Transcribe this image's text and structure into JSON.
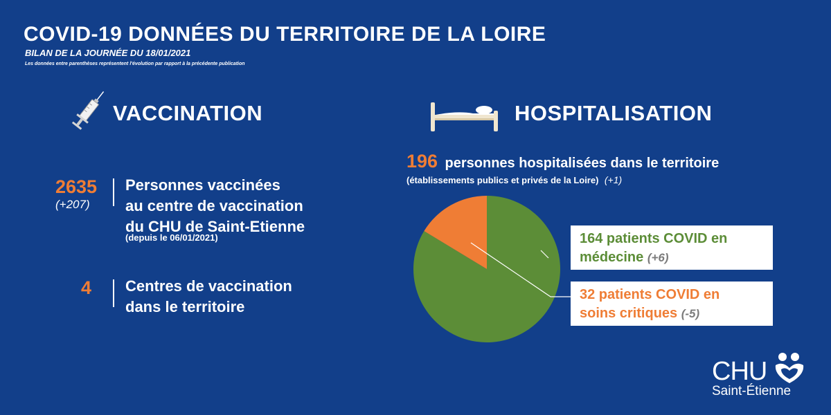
{
  "header": {
    "title": "COVID-19 DONNÉES DU TERRITOIRE DE LA LOIRE",
    "subtitle": "BILAN DE LA JOURNÉE DU 18/01/2021",
    "note": "Les données entre parenthèses représentent l'évolution par rapport à la précédente publication"
  },
  "vaccination": {
    "title": "VACCINATION",
    "icon": "syringe-icon",
    "persons": {
      "value": "2635",
      "evolution": "(+207)",
      "line1": "Personnes vaccinées",
      "line2": "au centre de vaccination",
      "line3": "du CHU de Saint-Etienne",
      "since": "(depuis le 06/01/2021)"
    },
    "centres": {
      "value": "4",
      "line1": "Centres de vaccination",
      "line2": "dans le territoire"
    }
  },
  "hospitalisation": {
    "title": "HOSPITALISATION",
    "icon": "bed-icon",
    "total_value": "196",
    "total_text": "personnes hospitalisées dans le territoire",
    "total_detail": "(établissements publics et privés de la Loire)",
    "total_evolution": "(+1)",
    "medecine": {
      "line1": "164 patients COVID en",
      "line2": "médecine",
      "evolution": "(+6)"
    },
    "critiques": {
      "line1": "32 patients COVID en",
      "line2": "soins critiques",
      "evolution": "(-5)"
    }
  },
  "chart_data": {
    "type": "pie",
    "categories": [
      "patients COVID en médecine",
      "patients COVID en soins critiques"
    ],
    "values": [
      164,
      32
    ],
    "colors": [
      "#5c8d37",
      "#ef7d35"
    ],
    "start": "top",
    "direction": "clockwise"
  },
  "logo": {
    "name": "CHU",
    "city": "Saint-Étienne"
  },
  "colors": {
    "background": "#123f8a",
    "accent_orange": "#ef7d35",
    "accent_green": "#5c8d37",
    "text": "#ffffff"
  }
}
